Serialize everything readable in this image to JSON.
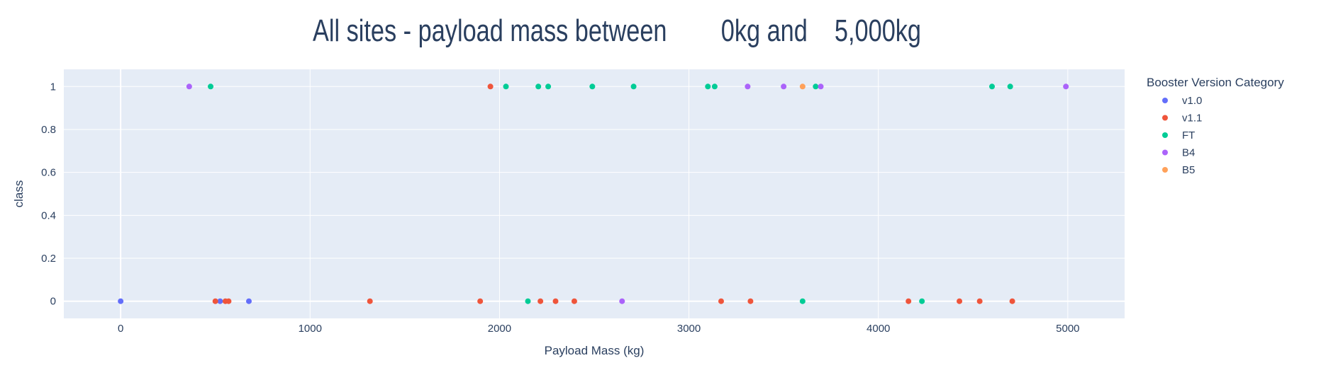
{
  "chart_data": {
    "type": "scatter",
    "title": "All sites - payload mass between        0kg and    5,000kg",
    "xlabel": "Payload Mass (kg)",
    "ylabel": "class",
    "xlim": [
      -300,
      5300
    ],
    "ylim": [
      -0.08,
      1.08
    ],
    "xticks": [
      0,
      1000,
      2000,
      3000,
      4000,
      5000
    ],
    "xtick_labels": [
      "0",
      "1000",
      "2000",
      "3000",
      "4000",
      "5000"
    ],
    "yticks": [
      0,
      0.2,
      0.4,
      0.6,
      0.8,
      1
    ],
    "ytick_labels": [
      "0",
      "0.2",
      "0.4",
      "0.6",
      "0.8",
      "1"
    ],
    "grid": true,
    "legend_title": "Booster Version Category",
    "legend_position": "right",
    "series": [
      {
        "name": "v1.0",
        "color": "#636efa",
        "points": [
          [
            0,
            0
          ],
          [
            525,
            0
          ],
          [
            677,
            0
          ]
        ]
      },
      {
        "name": "v1.1",
        "color": "#ef553b",
        "points": [
          [
            500,
            0
          ],
          [
            553,
            0
          ],
          [
            570,
            0
          ],
          [
            1316,
            0
          ],
          [
            1898,
            0
          ],
          [
            1952,
            1
          ],
          [
            2216,
            0
          ],
          [
            2296,
            0
          ],
          [
            2395,
            0
          ],
          [
            3170,
            0
          ],
          [
            3325,
            0
          ],
          [
            4159,
            0
          ],
          [
            4428,
            0
          ],
          [
            4535,
            0
          ],
          [
            4707,
            0
          ]
        ]
      },
      {
        "name": "FT",
        "color": "#00cc96",
        "points": [
          [
            475,
            1
          ],
          [
            2034,
            1
          ],
          [
            2150,
            0
          ],
          [
            2205,
            1
          ],
          [
            2257,
            1
          ],
          [
            2490,
            1
          ],
          [
            2708,
            1
          ],
          [
            3100,
            1
          ],
          [
            3136,
            1
          ],
          [
            3600,
            0
          ],
          [
            3669,
            1
          ],
          [
            4230,
            0
          ],
          [
            4600,
            1
          ],
          [
            4696,
            1
          ]
        ]
      },
      {
        "name": "B4",
        "color": "#ab63fa",
        "points": [
          [
            362,
            1
          ],
          [
            2647,
            0
          ],
          [
            3310,
            1
          ],
          [
            3500,
            1
          ],
          [
            3696,
            1
          ],
          [
            4990,
            1
          ]
        ]
      },
      {
        "name": "B5",
        "color": "#ffa15a",
        "points": [
          [
            3600,
            1
          ]
        ]
      }
    ]
  }
}
